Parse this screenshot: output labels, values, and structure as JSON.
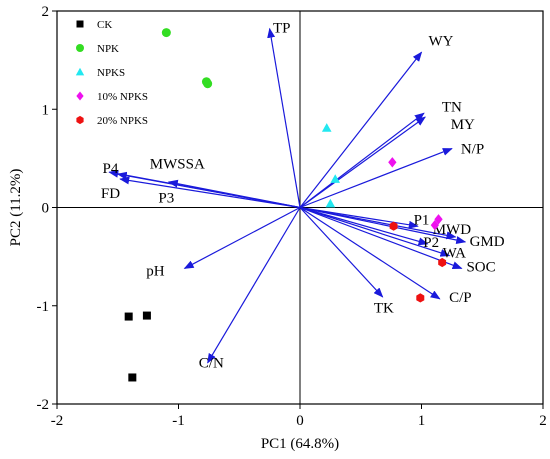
{
  "chart_data": {
    "type": "scatter",
    "subtype": "pca-biplot",
    "xlabel": "PC1 (64.8%)",
    "ylabel": "PC2 (11.2%)",
    "xlim": [
      -2,
      2
    ],
    "ylim": [
      -2,
      2
    ],
    "xticks": [
      "-2",
      "-1",
      "0",
      "1",
      "2"
    ],
    "yticks": [
      "-2",
      "-1",
      "0",
      "1",
      "2"
    ],
    "grid": false,
    "legend_position": "top-left",
    "vector_color": "#1a1adb",
    "series": [
      {
        "name": "CK",
        "marker": "square",
        "color": "#000000",
        "points": [
          [
            -1.41,
            -1.11
          ],
          [
            -1.26,
            -1.1
          ],
          [
            -1.38,
            -1.73
          ]
        ]
      },
      {
        "name": "NPK",
        "marker": "circle",
        "color": "#33dd22",
        "points": [
          [
            -1.1,
            1.78
          ],
          [
            -0.77,
            1.28
          ],
          [
            -0.76,
            1.26
          ]
        ]
      },
      {
        "name": "NPKS",
        "marker": "triangle",
        "color": "#22e8f0",
        "points": [
          [
            0.22,
            0.81
          ],
          [
            0.29,
            0.29
          ],
          [
            0.25,
            0.04
          ]
        ]
      },
      {
        "name": "10% NPKS",
        "marker": "diamond",
        "color": "#ee11ee",
        "points": [
          [
            0.76,
            0.46
          ],
          [
            1.14,
            -0.12
          ],
          [
            1.11,
            -0.18
          ]
        ]
      },
      {
        "name": "20% NPKS",
        "marker": "hexagon",
        "color": "#ee1111",
        "points": [
          [
            0.77,
            -0.19
          ],
          [
            1.17,
            -0.56
          ],
          [
            0.99,
            -0.92
          ]
        ]
      }
    ],
    "vectors": [
      {
        "label": "TP",
        "x": -0.25,
        "y": 1.82,
        "lx": -0.15,
        "ly": 1.83
      },
      {
        "label": "WY",
        "x": 1.0,
        "y": 1.58,
        "lx": 1.16,
        "ly": 1.7
      },
      {
        "label": "TN",
        "x": 1.02,
        "y": 0.96,
        "lx": 1.25,
        "ly": 1.03
      },
      {
        "label": "MY",
        "x": 1.03,
        "y": 0.92,
        "lx": 1.34,
        "ly": 0.85
      },
      {
        "label": "N/P",
        "x": 1.25,
        "y": 0.6,
        "lx": 1.42,
        "ly": 0.6
      },
      {
        "label": "P4",
        "x": -1.57,
        "y": 0.36,
        "lx": -1.56,
        "ly": 0.4
      },
      {
        "label": "MWSSA",
        "x": -1.5,
        "y": 0.34,
        "lx": -1.01,
        "ly": 0.45
      },
      {
        "label": "FD",
        "x": -1.48,
        "y": 0.29,
        "lx": -1.56,
        "ly": 0.15
      },
      {
        "label": "P3",
        "x": -1.08,
        "y": 0.26,
        "lx": -1.1,
        "ly": 0.1
      },
      {
        "label": "P1",
        "x": 0.97,
        "y": -0.19,
        "lx": 1.0,
        "ly": -0.12
      },
      {
        "label": "MWD",
        "x": 1.28,
        "y": -0.3,
        "lx": 1.25,
        "ly": -0.22
      },
      {
        "label": "GMD",
        "x": 1.36,
        "y": -0.35,
        "lx": 1.54,
        "ly": -0.34
      },
      {
        "label": "P2",
        "x": 1.05,
        "y": -0.37,
        "lx": 1.08,
        "ly": -0.35
      },
      {
        "label": "WA",
        "x": 1.23,
        "y": -0.49,
        "lx": 1.27,
        "ly": -0.46
      },
      {
        "label": "SOC",
        "x": 1.33,
        "y": -0.62,
        "lx": 1.49,
        "ly": -0.6
      },
      {
        "label": "C/P",
        "x": 1.15,
        "y": -0.93,
        "lx": 1.32,
        "ly": -0.91
      },
      {
        "label": "TK",
        "x": 0.68,
        "y": -0.91,
        "lx": 0.69,
        "ly": -1.02
      },
      {
        "label": "pH",
        "x": -0.95,
        "y": -0.62,
        "lx": -1.19,
        "ly": -0.64
      },
      {
        "label": "C/N",
        "x": -0.76,
        "y": -1.58,
        "lx": -0.73,
        "ly": -1.58
      }
    ]
  }
}
